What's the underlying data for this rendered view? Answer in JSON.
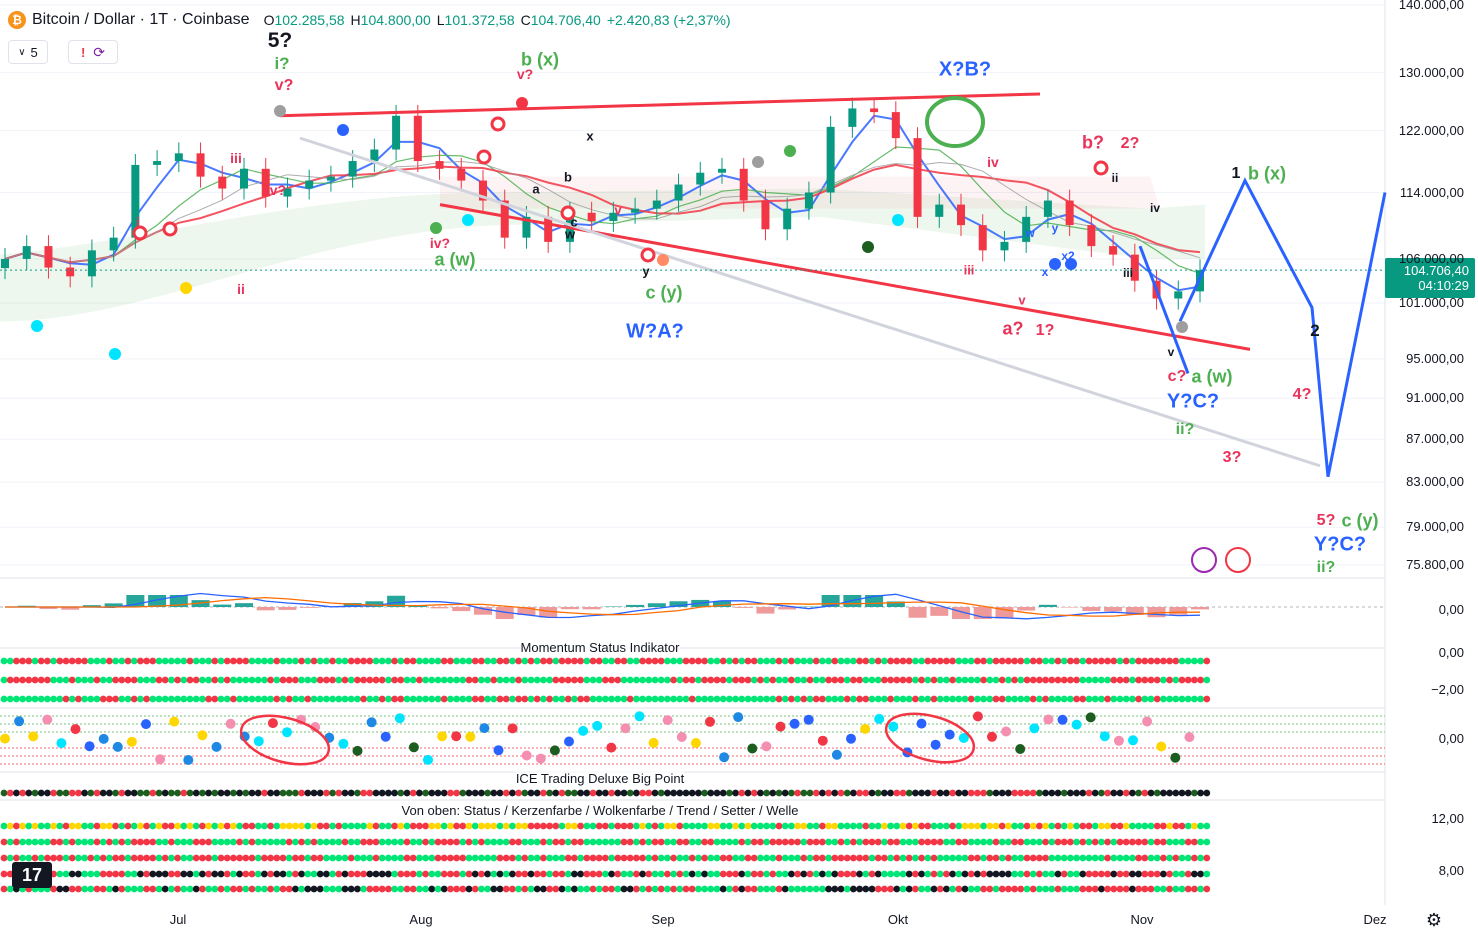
{
  "header": {
    "symbol": "Bitcoin / Dollar · 1T · Coinbase",
    "o_label": "O",
    "o_value": "102.285,58",
    "h_label": "H",
    "h_value": "104.800,00",
    "l_label": "L",
    "l_value": "101.372,58",
    "c_label": "C",
    "c_value": "104.706,40",
    "change": "+2.420,83 (+2,37%)",
    "icon": "bitcoin-icon"
  },
  "controls": {
    "collapse_value": "5",
    "alert_label": "!",
    "sync_icon": "sync-icon"
  },
  "last_price": {
    "value": "104.706,40",
    "countdown": "04:10:29",
    "color": "#089981"
  },
  "pane_titles": {
    "momentum": "Momentum Status Indikator",
    "ice": "ICE Trading Deluxe Big Point",
    "ice_sub": "Von oben: Status / Kerzenfarbe / Wolkenfarbe / Trend / Setter / Welle"
  },
  "logo": "17",
  "colors": {
    "up": "#089981",
    "down": "#f23645",
    "wave_red": "#e8335a",
    "wave_green": "#4caf50",
    "wave_blue": "#2962ff",
    "trendline": "#f23645"
  },
  "chart_data": [
    {
      "type": "candlestick",
      "title": "Bitcoin / Dollar · 1T · Coinbase",
      "x_ticks": [
        "Jul",
        "Aug",
        "Sep",
        "Okt",
        "Nov",
        "Dez"
      ],
      "y_ticks": [
        "140.000,00",
        "130.000,00",
        "122.000,00",
        "114.000,00",
        "106.000,00",
        "101.000,00",
        "95.000,00",
        "91.000,00",
        "87.000,00",
        "83.000,00",
        "79.000,00",
        "75.800,00"
      ],
      "y_ticks_numeric": [
        140000,
        130000,
        122000,
        114000,
        106000,
        101000,
        95000,
        91000,
        87000,
        83000,
        79000,
        75800
      ],
      "scale": "log",
      "series": [
        {
          "name": "BTCUSD",
          "approx_close": [
            106000,
            107500,
            105000,
            104000,
            107000,
            108500,
            117500,
            118000,
            119000,
            116000,
            114500,
            117000,
            113500,
            114500,
            115500,
            116000,
            118000,
            119500,
            124000,
            118000,
            117000,
            115500,
            113000,
            108500,
            111000,
            108000,
            111500,
            110500,
            111500,
            112000,
            113000,
            115000,
            116500,
            117000,
            113000,
            109500,
            112000,
            114000,
            122500,
            125000,
            124500,
            121000,
            111000,
            112500,
            110000,
            107000,
            108000,
            111000,
            113000,
            110000,
            107500,
            106500,
            103500,
            101500,
            102300,
            104700
          ]
        }
      ],
      "wave_labels": [
        "5?",
        "i?",
        "v?",
        "iii",
        "iv?",
        "ii",
        "i",
        "b (x)",
        "v?",
        "iv?",
        "a (w)",
        "x",
        "a",
        "b",
        "c",
        "w",
        "v",
        "y",
        "c (y)",
        "W?A?",
        "X?B?",
        "b?",
        "2?",
        "iv",
        "iii",
        "v",
        "a?",
        "1?",
        "x",
        "w",
        "y",
        "x2",
        "ii",
        "iii",
        "iv",
        "v",
        "c?",
        "a (w)",
        "Y?C?",
        "ii?",
        "1",
        "b (x)",
        "2",
        "4?",
        "3?",
        "5?",
        "c (y)",
        "Y?C?",
        "ii?"
      ]
    },
    {
      "type": "line",
      "title": "",
      "y_ticks": [
        "0,00"
      ],
      "series": [
        {
          "name": "",
          "values": []
        }
      ]
    },
    {
      "type": "table",
      "title": "Momentum Status Indikator",
      "y_ticks": [
        "0,00",
        "−2,00"
      ]
    },
    {
      "type": "scatter",
      "title": "",
      "y_ticks": [
        "0,00"
      ]
    },
    {
      "type": "table",
      "title": "ICE Trading Deluxe Big Point",
      "subtitle": "Von oben: Status / Kerzenfarbe / Wolkenfarbe / Trend / Setter / Welle",
      "y_ticks": [
        "12,00",
        "8,00"
      ]
    }
  ],
  "waves": [
    {
      "t": "5?",
      "c": "#131722"
    },
    {
      "t": "i?",
      "c": "#4caf50"
    },
    {
      "t": "v?",
      "c": "#e8335a"
    },
    {
      "t": "iii",
      "c": "#e8335a"
    },
    {
      "t": "iv?",
      "c": "#e8335a"
    },
    {
      "t": "ii",
      "c": "#e8335a"
    },
    {
      "t": "i",
      "c": "#e8335a"
    },
    {
      "t": "b (x)",
      "c": "#4caf50"
    },
    {
      "t": "v?",
      "c": "#e8335a"
    },
    {
      "t": "iv?",
      "c": "#e8335a"
    },
    {
      "t": "a (w)",
      "c": "#4caf50"
    },
    {
      "t": "x",
      "c": "#131722"
    },
    {
      "t": "a",
      "c": "#131722"
    },
    {
      "t": "b",
      "c": "#131722"
    },
    {
      "t": "c",
      "c": "#131722"
    },
    {
      "t": "w",
      "c": "#131722"
    },
    {
      "t": "v",
      "c": "#e8335a"
    },
    {
      "t": "y",
      "c": "#131722"
    },
    {
      "t": "c (y)",
      "c": "#4caf50"
    },
    {
      "t": "W?A?",
      "c": "#2962ff"
    },
    {
      "t": "X?B?",
      "c": "#2962ff"
    },
    {
      "t": "b?",
      "c": "#e8335a"
    },
    {
      "t": "2?",
      "c": "#e8335a"
    },
    {
      "t": "iv",
      "c": "#e8335a"
    },
    {
      "t": "iii",
      "c": "#e8335a"
    },
    {
      "t": "v",
      "c": "#e8335a"
    },
    {
      "t": "a?",
      "c": "#e8335a"
    },
    {
      "t": "1?",
      "c": "#e8335a"
    },
    {
      "t": "x",
      "c": "#2962ff"
    },
    {
      "t": "w",
      "c": "#2962ff"
    },
    {
      "t": "y",
      "c": "#2962ff"
    },
    {
      "t": "x2",
      "c": "#2962ff"
    },
    {
      "t": "ii",
      "c": "#131722"
    },
    {
      "t": "iii",
      "c": "#131722"
    },
    {
      "t": "iv",
      "c": "#131722"
    },
    {
      "t": "v",
      "c": "#131722"
    },
    {
      "t": "c?",
      "c": "#e8335a"
    },
    {
      "t": "a (w)",
      "c": "#4caf50"
    },
    {
      "t": "Y?C?",
      "c": "#2962ff"
    },
    {
      "t": "ii?",
      "c": "#4caf50"
    },
    {
      "t": "1",
      "c": "#131722"
    },
    {
      "t": "b (x)",
      "c": "#4caf50"
    },
    {
      "t": "2",
      "c": "#131722"
    },
    {
      "t": "4?",
      "c": "#e8335a"
    },
    {
      "t": "3?",
      "c": "#e8335a"
    },
    {
      "t": "5?",
      "c": "#e8335a"
    },
    {
      "t": "c (y)",
      "c": "#4caf50"
    },
    {
      "t": "Y?C?",
      "c": "#2962ff"
    },
    {
      "t": "ii?",
      "c": "#4caf50"
    }
  ]
}
